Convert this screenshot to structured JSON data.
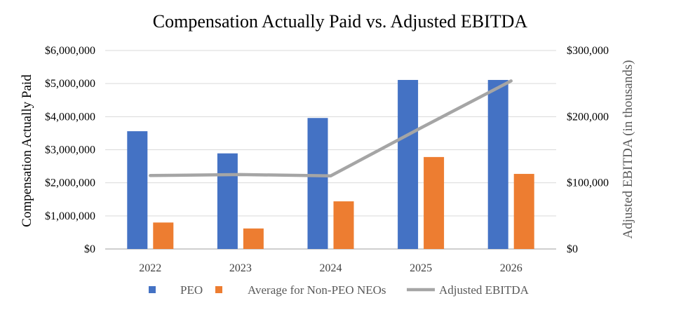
{
  "chart_data": {
    "type": "bar",
    "title": "Compensation Actually Paid vs. Adjusted EBITDA",
    "categories": [
      "2022",
      "2023",
      "2024",
      "2025",
      "2026"
    ],
    "ylabel": "Compensation Actually Paid",
    "y2label": "Adjusted EBITDA  (in thousands)",
    "ylim": [
      0,
      6000000
    ],
    "y2lim": [
      0,
      300000
    ],
    "yticks": [
      "$0",
      "$1,000,000",
      "$2,000,000",
      "$3,000,000",
      "$4,000,000",
      "$5,000,000",
      "$6,000,000"
    ],
    "y2ticks": [
      "$0",
      "$100,000",
      "$200,000",
      "$300,000"
    ],
    "grid": true,
    "legend_position": "bottom",
    "series": [
      {
        "name": "PEO",
        "type": "bar",
        "axis": "left",
        "color": "#4472C4",
        "values": [
          3560000,
          2890000,
          3960000,
          5110000,
          5110000
        ]
      },
      {
        "name": "Average for Non-PEO NEOs",
        "type": "bar",
        "axis": "left",
        "color": "#ED7D31",
        "values": [
          800000,
          620000,
          1440000,
          2780000,
          2270000
        ]
      },
      {
        "name": "Adjusted EBITDA",
        "type": "line",
        "axis": "right",
        "color": "#A5A5A5",
        "values": [
          111000,
          112500,
          110500,
          183000,
          254000
        ]
      }
    ]
  }
}
